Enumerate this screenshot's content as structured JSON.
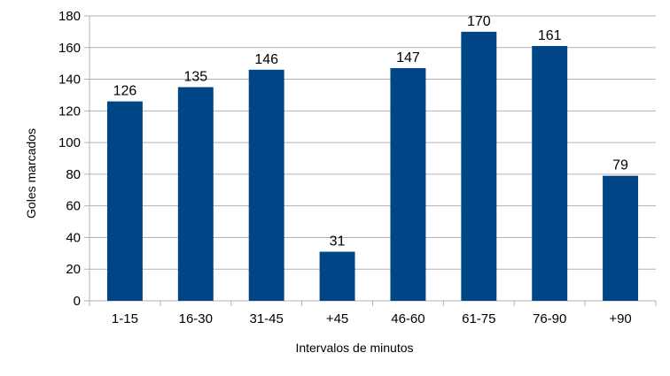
{
  "chart_data": {
    "type": "bar",
    "title": "",
    "xlabel": "Intervalos de minutos",
    "ylabel": "Goles marcados",
    "categories": [
      "1-15",
      "16-30",
      "31-45",
      "+45",
      "46-60",
      "61-75",
      "76-90",
      "+90"
    ],
    "values": [
      126,
      135,
      146,
      31,
      147,
      170,
      161,
      79
    ],
    "ylim": [
      0,
      180
    ],
    "ytick_step": 20,
    "grid": true,
    "legend": "none",
    "bar_color": "#004586"
  }
}
